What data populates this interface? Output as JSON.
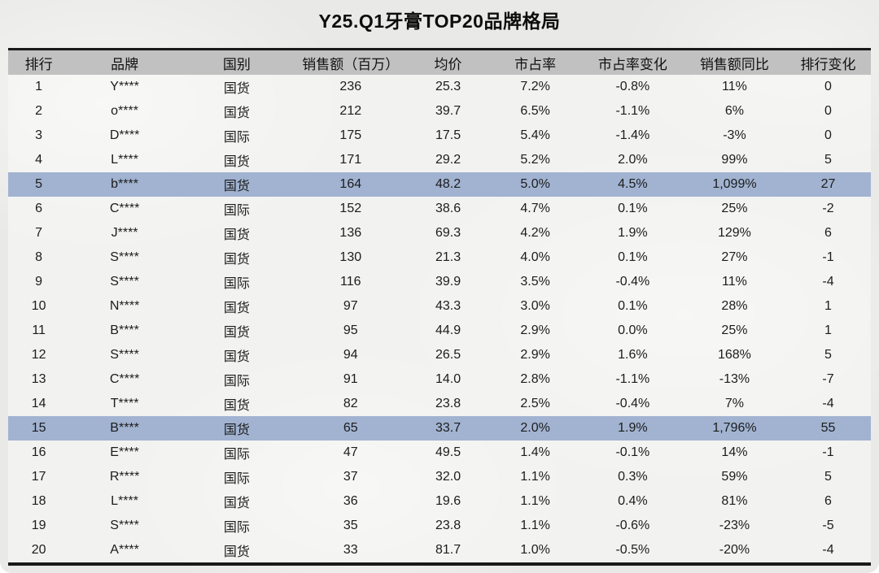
{
  "title": "Y25.Q1牙膏TOP20品牌格局",
  "colors": {
    "page_background": "#e9e9e7",
    "header_background": "#c1c1c1",
    "highlight_row_background": "#a1b3d1",
    "border": "#191919",
    "text": "#1c1c1c"
  },
  "chart_data": {
    "type": "table",
    "title": "Y25.Q1牙膏TOP20品牌格局",
    "columns": [
      "排行",
      "品牌",
      "国别",
      "销售额（百万）",
      "均价",
      "市占率",
      "市占率变化",
      "销售额同比",
      "排行变化"
    ],
    "rows": [
      [
        "1",
        "Y****",
        "国货",
        "236",
        "25.3",
        "7.2%",
        "-0.8%",
        "11%",
        "0"
      ],
      [
        "2",
        "o****",
        "国货",
        "212",
        "39.7",
        "6.5%",
        "-1.1%",
        "6%",
        "0"
      ],
      [
        "3",
        "D****",
        "国际",
        "175",
        "17.5",
        "5.4%",
        "-1.4%",
        "-3%",
        "0"
      ],
      [
        "4",
        "L****",
        "国货",
        "171",
        "29.2",
        "5.2%",
        "2.0%",
        "99%",
        "5"
      ],
      [
        "5",
        "b****",
        "国货",
        "164",
        "48.2",
        "5.0%",
        "4.5%",
        "1,099%",
        "27"
      ],
      [
        "6",
        "C****",
        "国际",
        "152",
        "38.6",
        "4.7%",
        "0.1%",
        "25%",
        "-2"
      ],
      [
        "7",
        "J****",
        "国货",
        "136",
        "69.3",
        "4.2%",
        "1.9%",
        "129%",
        "6"
      ],
      [
        "8",
        "S****",
        "国货",
        "130",
        "21.3",
        "4.0%",
        "0.1%",
        "27%",
        "-1"
      ],
      [
        "9",
        "S****",
        "国际",
        "116",
        "39.9",
        "3.5%",
        "-0.4%",
        "11%",
        "-4"
      ],
      [
        "10",
        "N****",
        "国货",
        "97",
        "43.3",
        "3.0%",
        "0.1%",
        "28%",
        "1"
      ],
      [
        "11",
        "B****",
        "国货",
        "95",
        "44.9",
        "2.9%",
        "0.0%",
        "25%",
        "1"
      ],
      [
        "12",
        "S****",
        "国货",
        "94",
        "26.5",
        "2.9%",
        "1.6%",
        "168%",
        "5"
      ],
      [
        "13",
        "C****",
        "国际",
        "91",
        "14.0",
        "2.8%",
        "-1.1%",
        "-13%",
        "-7"
      ],
      [
        "14",
        "T****",
        "国货",
        "82",
        "23.8",
        "2.5%",
        "-0.4%",
        "7%",
        "-4"
      ],
      [
        "15",
        "B****",
        "国货",
        "65",
        "33.7",
        "2.0%",
        "1.9%",
        "1,796%",
        "55"
      ],
      [
        "16",
        "E****",
        "国际",
        "47",
        "49.5",
        "1.4%",
        "-0.1%",
        "14%",
        "-1"
      ],
      [
        "17",
        "R****",
        "国际",
        "37",
        "32.0",
        "1.1%",
        "0.3%",
        "59%",
        "5"
      ],
      [
        "18",
        "L****",
        "国货",
        "36",
        "19.6",
        "1.1%",
        "0.4%",
        "81%",
        "6"
      ],
      [
        "19",
        "S****",
        "国际",
        "35",
        "23.8",
        "1.1%",
        "-0.6%",
        "-23%",
        "-5"
      ],
      [
        "20",
        "A****",
        "国货",
        "33",
        "81.7",
        "1.0%",
        "-0.5%",
        "-20%",
        "-4"
      ]
    ],
    "highlighted_ranks": [
      5,
      15
    ],
    "layout": {
      "header_row": true,
      "gridlines": false,
      "top_border": true,
      "bottom_border": true
    }
  }
}
